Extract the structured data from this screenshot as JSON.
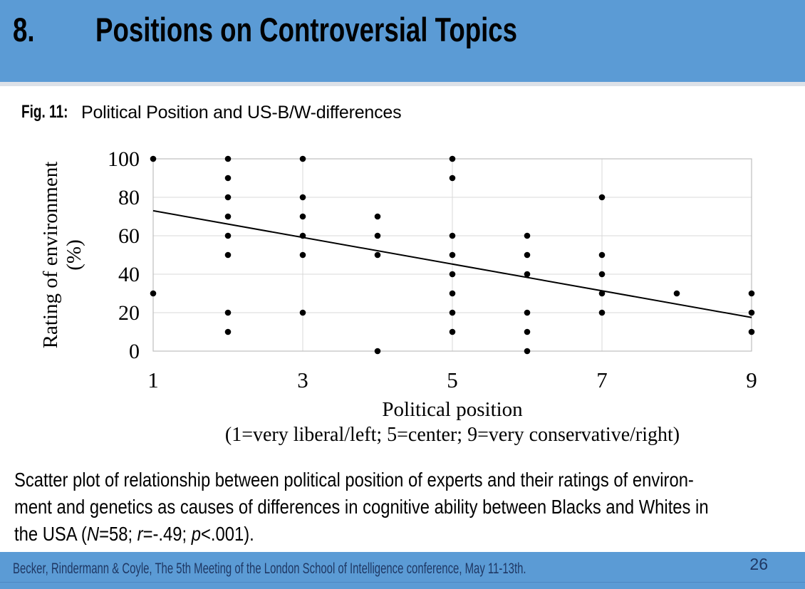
{
  "header": {
    "number": "8.",
    "title": "Positions on Controversial Topics"
  },
  "figure": {
    "label": "Fig. 11:",
    "title": "Political Position and US-B/W-differences"
  },
  "chart_data": {
    "type": "scatter",
    "xlabel": "Political position",
    "xlabel_note": "(1=very liberal/left; 5=center; 9=very conservative/right)",
    "ylabel_line1": "Rating of environment",
    "ylabel_line2": "(%)",
    "xlim": [
      1,
      9
    ],
    "ylim": [
      0,
      100
    ],
    "xticks": [
      1,
      3,
      5,
      7,
      9
    ],
    "yticks": [
      0,
      20,
      40,
      60,
      80,
      100
    ],
    "grid": "on",
    "points": [
      [
        1,
        100
      ],
      [
        1,
        30
      ],
      [
        2,
        100
      ],
      [
        2,
        90
      ],
      [
        2,
        80
      ],
      [
        2,
        70
      ],
      [
        2,
        60
      ],
      [
        2,
        50
      ],
      [
        2,
        20
      ],
      [
        2,
        10
      ],
      [
        3,
        100
      ],
      [
        3,
        80
      ],
      [
        3,
        70
      ],
      [
        3,
        60
      ],
      [
        3,
        50
      ],
      [
        3,
        20
      ],
      [
        4,
        70
      ],
      [
        4,
        60
      ],
      [
        4,
        50
      ],
      [
        4,
        0
      ],
      [
        5,
        100
      ],
      [
        5,
        90
      ],
      [
        5,
        60
      ],
      [
        5,
        50
      ],
      [
        5,
        40
      ],
      [
        5,
        30
      ],
      [
        5,
        20
      ],
      [
        5,
        10
      ],
      [
        6,
        60
      ],
      [
        6,
        50
      ],
      [
        6,
        40
      ],
      [
        6,
        20
      ],
      [
        6,
        10
      ],
      [
        6,
        0
      ],
      [
        7,
        80
      ],
      [
        7,
        50
      ],
      [
        7,
        40
      ],
      [
        7,
        30
      ],
      [
        7,
        20
      ],
      [
        8,
        30
      ],
      [
        9,
        30
      ],
      [
        9,
        20
      ],
      [
        9,
        10
      ]
    ],
    "trendline": {
      "x1": 1,
      "y1": 73,
      "x2": 9,
      "y2": 17.5
    }
  },
  "caption": {
    "line1": "Scatter plot of relationship between political position of experts and their ratings of environ-",
    "line2": "ment and genetics as causes of differences in cognitive ability between Blacks and Whites in",
    "line3_pre": "the USA (",
    "stat_n_label": "N",
    "stat_n_rest": "=58; ",
    "stat_r_label": "r",
    "stat_r_rest": "=-.49; ",
    "stat_p_label": "p",
    "stat_p_rest": "<.001)."
  },
  "footer": {
    "citation": "Becker, Rindermann & Coyle, The 5th Meeting of the London School of Intelligence conference, May 11-13th.",
    "page_number": "26"
  },
  "colors": {
    "accent_blue": "#5B9BD5",
    "header_divider": "#DCE1E8",
    "footer_text": "#1F3864",
    "footer_line": "#4E88C2",
    "grid": "#D8D8D8",
    "axis": "#BFBFBF",
    "dot": "#000000",
    "trend": "#000000"
  }
}
